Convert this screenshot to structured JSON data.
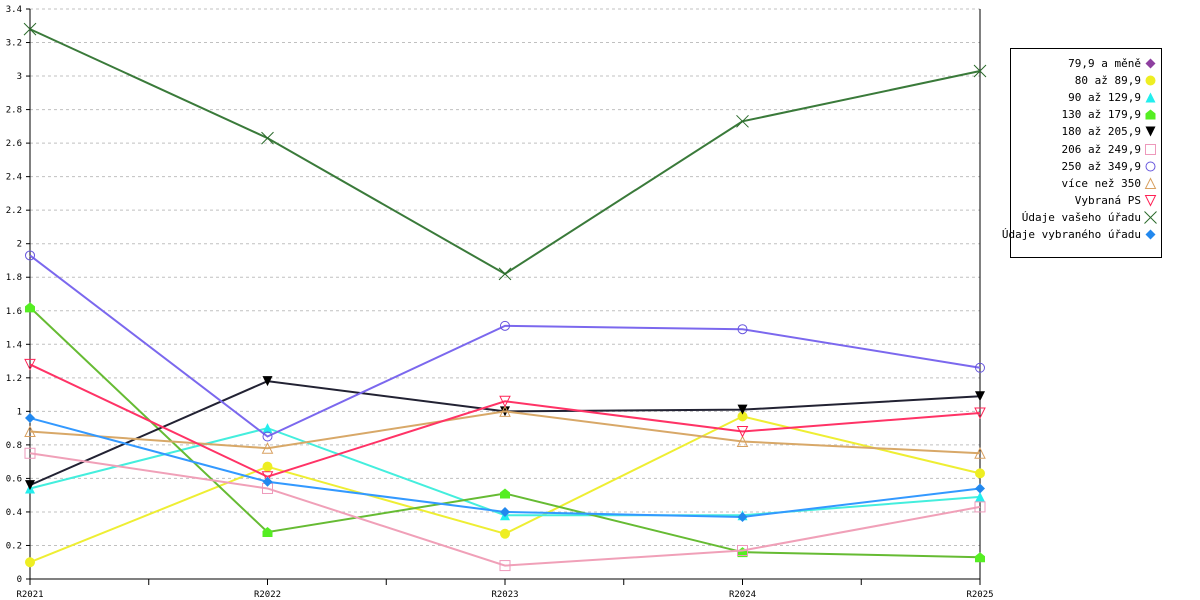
{
  "chart_data": {
    "type": "line",
    "title": "",
    "xlabel": "",
    "ylabel": "",
    "ylim": [
      0,
      3.4
    ],
    "y_ticks": [
      "0",
      "0.2",
      "0.4",
      "0.6",
      "0.8",
      "1",
      "1.2",
      "1.4",
      "1.6",
      "1.8",
      "2",
      "2.2",
      "2.4",
      "2.6",
      "2.8",
      "3",
      "3.2",
      "3.4"
    ],
    "categories": [
      "R2021",
      "R2022",
      "R2023",
      "R2024",
      "R2025"
    ],
    "grid": true,
    "legend_position": "right",
    "series": [
      {
        "name": "79,9 a měně",
        "color": "#8e3fa0",
        "marker": "diamond",
        "values": [
          null,
          null,
          null,
          null,
          null
        ]
      },
      {
        "name": "80 až 89,9",
        "color": "#eeee33",
        "markerColor": "#eeee22",
        "marker": "circle-filled",
        "values": [
          0.1,
          0.67,
          0.27,
          0.97,
          0.63
        ]
      },
      {
        "name": "90 až 129,9",
        "color": "#44eedd",
        "markerColor": "#22eeee",
        "marker": "triangle-filled",
        "values": [
          0.54,
          0.9,
          0.38,
          0.38,
          0.49
        ]
      },
      {
        "name": "130 až 179,9",
        "color": "#66bb33",
        "markerColor": "#55ee22",
        "marker": "pentagon-filled",
        "values": [
          1.62,
          0.28,
          0.51,
          0.16,
          0.13
        ]
      },
      {
        "name": "180 až 205,9",
        "color": "#222233",
        "markerColor": "#000000",
        "marker": "triangle-down-filled",
        "values": [
          0.56,
          1.18,
          1.0,
          1.01,
          1.09
        ]
      },
      {
        "name": "206 až 249,9",
        "color": "#f0a0b8",
        "markerColor": "#ee99bb",
        "marker": "square-open",
        "values": [
          0.75,
          0.54,
          0.08,
          0.17,
          0.43
        ]
      },
      {
        "name": "250 až 349,9",
        "color": "#7b68ee",
        "markerColor": "#6655dd",
        "marker": "circle-open",
        "values": [
          1.93,
          0.85,
          1.51,
          1.49,
          1.26
        ]
      },
      {
        "name": "více než 350",
        "color": "#d8a868",
        "markerColor": "#d8a060",
        "marker": "triangle-open",
        "values": [
          0.88,
          0.78,
          1.0,
          0.82,
          0.75
        ]
      },
      {
        "name": "Vybraná PS",
        "color": "#ff3366",
        "markerColor": "#ff2255",
        "marker": "triangle-down-open",
        "values": [
          1.28,
          0.61,
          1.06,
          0.88,
          0.99
        ]
      },
      {
        "name": "Údaje vašeho úřadu",
        "color": "#3a7a3a",
        "markerColor": "#2a6a2a",
        "marker": "x",
        "values": [
          3.28,
          2.63,
          1.82,
          2.73,
          3.03
        ]
      },
      {
        "name": "Údaje vybraného úřadu",
        "color": "#3399ff",
        "markerColor": "#2288ee",
        "marker": "diamond",
        "values": [
          0.96,
          0.58,
          0.4,
          0.37,
          0.54
        ]
      }
    ]
  }
}
